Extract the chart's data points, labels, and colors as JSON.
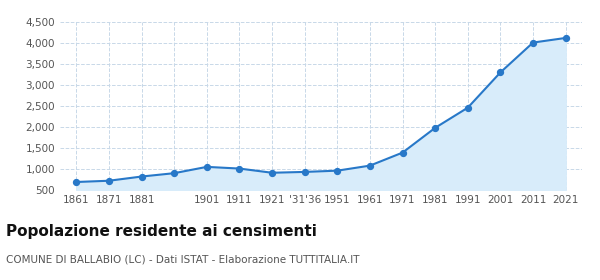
{
  "years": [
    1861,
    1871,
    1881,
    1901,
    1911,
    1921,
    1931,
    1936,
    1951,
    1961,
    1971,
    1981,
    1991,
    2001,
    2011,
    2021
  ],
  "population": [
    700,
    730,
    830,
    910,
    1060,
    1020,
    920,
    940,
    970,
    1090,
    1400,
    1990,
    2470,
    3310,
    4020,
    4130
  ],
  "x_tick_labels": [
    "1861",
    "1871",
    "1881",
    "",
    "1901",
    "1911",
    "1921",
    "'31'36",
    "1951",
    "1961",
    "1971",
    "1981",
    "1991",
    "2001",
    "2011",
    "2021"
  ],
  "line_color": "#2878c8",
  "fill_color": "#d8ecfa",
  "marker_color": "#2878c8",
  "bg_color": "#ffffff",
  "grid_color": "#c8d8e8",
  "title": "Popolazione residente ai censimenti",
  "subtitle": "COMUNE DI BALLABIO (LC) - Dati ISTAT - Elaborazione TUTTITALIA.IT",
  "ylim": [
    500,
    4500
  ],
  "yticks": [
    500,
    1000,
    1500,
    2000,
    2500,
    3000,
    3500,
    4000,
    4500
  ],
  "ytick_labels": [
    "500",
    "1,000",
    "1,500",
    "2,000",
    "2,500",
    "3,000",
    "3,500",
    "4,000",
    "4,500"
  ],
  "title_fontsize": 11,
  "subtitle_fontsize": 7.5,
  "tick_fontsize": 7.5
}
